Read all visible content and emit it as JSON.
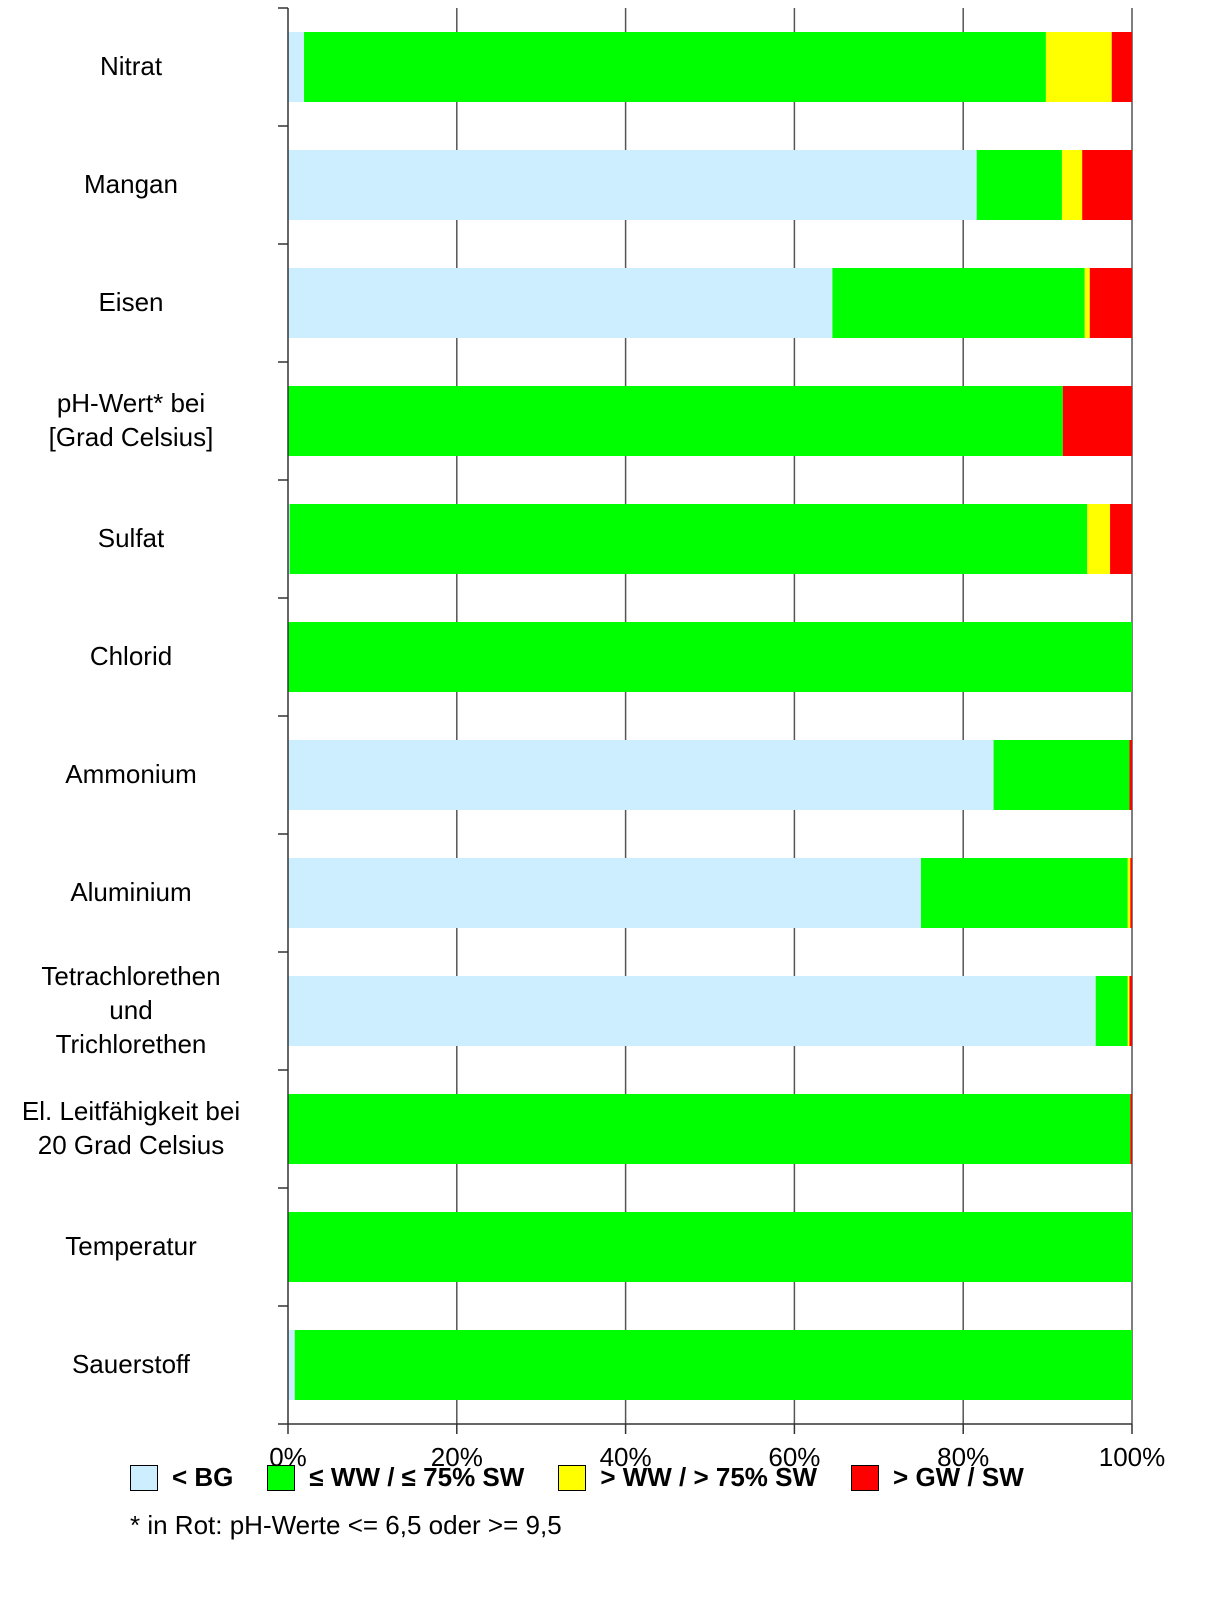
{
  "chart_data": {
    "type": "bar",
    "orientation": "horizontal",
    "stacked": true,
    "grid": true,
    "categories": [
      "Nitrat",
      "Mangan",
      "Eisen",
      "pH-Wert* bei\n[Grad Celsius]",
      "Sulfat",
      "Chlorid",
      "Ammonium",
      "Aluminium",
      "Tetrachlorethen\nund\nTrichlorethen",
      "El. Leitfähigkeit bei\n20 Grad Celsius",
      "Temperatur",
      "Sauerstoff"
    ],
    "series": [
      {
        "name": "< BG",
        "color": "#cceeff",
        "values": [
          1.9,
          81.6,
          64.5,
          0,
          0.2,
          0,
          83.6,
          75.0,
          95.7,
          0,
          0,
          0.8
        ]
      },
      {
        "name": "≤ WW / ≤ 75% SW",
        "color": "#00ff00",
        "values": [
          87.9,
          10.1,
          29.9,
          91.8,
          94.5,
          100,
          16.1,
          24.5,
          3.8,
          99.8,
          100,
          99.2
        ]
      },
      {
        "name": "> WW / > 75% SW",
        "color": "#ffff00",
        "values": [
          7.8,
          2.4,
          0.6,
          0,
          2.7,
          0,
          0,
          0.3,
          0.2,
          0,
          0,
          0
        ]
      },
      {
        "name": "> GW / SW",
        "color": "#ff0000",
        "values": [
          2.4,
          5.9,
          5.0,
          8.2,
          2.6,
          0,
          0.3,
          0.2,
          0.3,
          0.2,
          0,
          0
        ]
      }
    ],
    "xlim": [
      0,
      100
    ],
    "xticks": [
      {
        "value": 0,
        "label": "0%"
      },
      {
        "value": 20,
        "label": "20%"
      },
      {
        "value": 40,
        "label": "40%"
      },
      {
        "value": 60,
        "label": "60%"
      },
      {
        "value": 80,
        "label": "80%"
      },
      {
        "value": 100,
        "label": "100%"
      }
    ],
    "note": "* in Rot: pH-Werte <= 6,5 oder >= 9,5"
  }
}
